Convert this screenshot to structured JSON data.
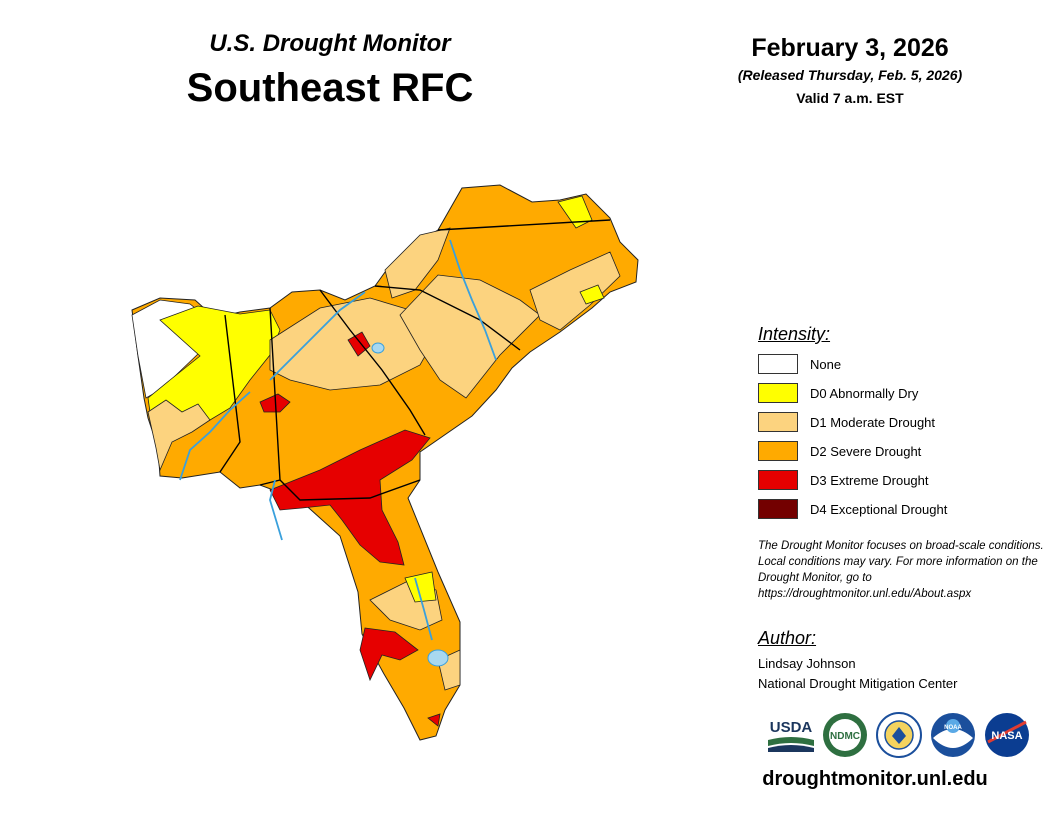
{
  "header": {
    "subtitle": "U.S. Drought Monitor",
    "title": "Southeast RFC",
    "date": "February 3, 2026",
    "released": "(Released Thursday, Feb. 5, 2026)",
    "valid": "Valid 7 a.m. EST"
  },
  "legend": {
    "heading": "Intensity:",
    "items": [
      {
        "label": "None",
        "color": "#ffffff"
      },
      {
        "label": "D0 Abnormally Dry",
        "color": "#ffff00"
      },
      {
        "label": "D1 Moderate Drought",
        "color": "#fcd37f"
      },
      {
        "label": "D2 Severe Drought",
        "color": "#ffaa00"
      },
      {
        "label": "D3 Extreme Drought",
        "color": "#e60000"
      },
      {
        "label": "D4 Exceptional Drought",
        "color": "#730000"
      }
    ]
  },
  "disclaimer": "The Drought Monitor focuses on broad-scale conditions. Local conditions may vary. For more information on the Drought Monitor, go to https://droughtmonitor.unl.edu/About.aspx",
  "author": {
    "heading": "Author:",
    "name": "Lindsay Johnson",
    "org": "National Drought Mitigation Center"
  },
  "logos": {
    "usda": "USDA",
    "ndmc": "NDMC",
    "noaa": "NOAA",
    "nasa": "NASA"
  },
  "website": "droughtmonitor.unl.edu",
  "colors": {
    "river": "#3aa0dc",
    "boundary": "#000000",
    "lake": "#a8d8f0"
  }
}
